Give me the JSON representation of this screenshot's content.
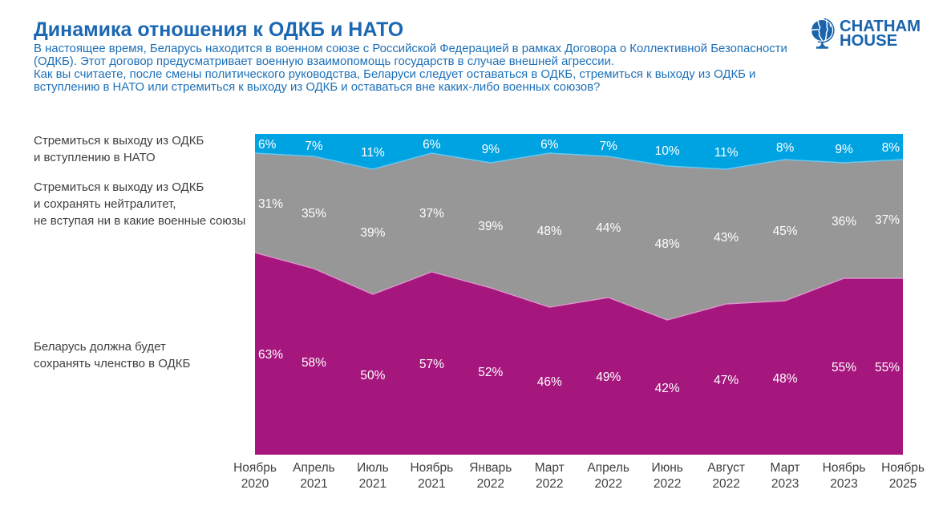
{
  "header": {
    "title": "Динамика отношения к ОДКБ и НАТО",
    "subtitle_lines": [
      "В настоящее время, Беларусь находится в военном союзе с Российской Федерацией в рамках Договора о Коллективной Безопасности",
      "(ОДКБ). Этот договор предусматривает военную взаимопомощь государств в случае внешней агрессии.",
      "Как вы считаете, после смены политического руководства, Беларуси следует оставаться в ОДКБ, стремиться к выходу из ОДКБ и",
      "вступлению в НАТО или стремиться к выходу из ОДКБ и оставаться вне каких-либо военных союзов?"
    ],
    "title_color": "#1b68b2",
    "subtitle_color": "#1d70b8"
  },
  "logo": {
    "name": "Chatham House",
    "line1": "CHATHAM",
    "line2": "HOUSE",
    "color": "#1a64ad"
  },
  "chart_data": {
    "type": "area",
    "stacked": true,
    "unit": "%",
    "ylim": [
      0,
      100
    ],
    "grid": false,
    "legend_position": "left",
    "categories": [
      {
        "month": "Ноябрь",
        "year": "2020"
      },
      {
        "month": "Апрель",
        "year": "2021"
      },
      {
        "month": "Июль",
        "year": "2021"
      },
      {
        "month": "Ноябрь",
        "year": "2021"
      },
      {
        "month": "Январь",
        "year": "2022"
      },
      {
        "month": "Март",
        "year": "2022"
      },
      {
        "month": "Апрель",
        "year": "2022"
      },
      {
        "month": "Июнь",
        "year": "2022"
      },
      {
        "month": "Август",
        "year": "2022"
      },
      {
        "month": "Март",
        "year": "2023"
      },
      {
        "month": "Ноябрь",
        "year": "2023"
      },
      {
        "month": "Ноябрь",
        "year": "2025"
      }
    ],
    "series": [
      {
        "name": "Стремиться к выходу из ОДКБ и вступлению в НАТО",
        "label_lines": [
          "Стремиться к выходу из ОДКБ",
          "и вступлению в НАТО"
        ],
        "stack_position": "top",
        "color": "#00a3e2",
        "edge_color": "#6ac8f0",
        "values": [
          6,
          7,
          11,
          6,
          9,
          6,
          7,
          10,
          11,
          8,
          9,
          8
        ]
      },
      {
        "name": "Стремиться к выходу из ОДКБ и сохранять нейтралитет, не вступая ни в какие военные союзы",
        "label_lines": [
          "Стремиться к выходу из ОДКБ",
          "и сохранять нейтралитет,",
          "не вступая ни в какие военные союзы"
        ],
        "stack_position": "middle",
        "color": "#979797",
        "edge_color": null,
        "values": [
          31,
          35,
          39,
          37,
          39,
          48,
          44,
          48,
          43,
          45,
          36,
          37
        ]
      },
      {
        "name": "Беларусь должна будет сохранять членство в ОДКБ",
        "label_lines": [
          "Беларусь должна будет",
          "сохранять членство в ОДКБ"
        ],
        "stack_position": "bottom",
        "color": "#a6177e",
        "edge_color": "#d998c8",
        "values": [
          63,
          58,
          50,
          57,
          52,
          46,
          49,
          42,
          47,
          48,
          55,
          55
        ]
      }
    ],
    "value_label_color": "#ffffff",
    "axis_label_color": "#3f3f3f"
  }
}
